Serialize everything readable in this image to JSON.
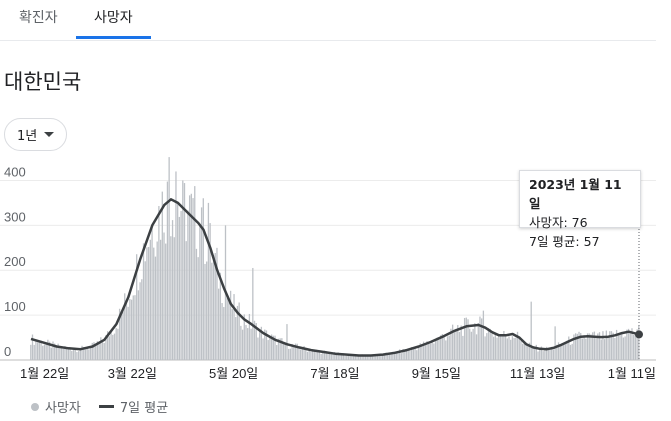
{
  "tabs": [
    {
      "label": "확진자"
    },
    {
      "label": "사망자"
    }
  ],
  "region": "대한민국",
  "period": {
    "selected": "1년"
  },
  "tooltip": {
    "date": "2023년 1월 11일",
    "deaths_line": "사망자: 76",
    "avg_line": "7일 평균: 57"
  },
  "legend": {
    "bars": "사망자",
    "line": "7일 평균"
  },
  "colors": {
    "bar": "#bdc1c6",
    "line": "#3c4043",
    "accent": "#1a73e8"
  },
  "chart_data": {
    "type": "bar",
    "ylim": [
      0,
      450
    ],
    "yticks": [
      0,
      100,
      200,
      300,
      400
    ],
    "xlabels": [
      "1월 22일",
      "3월 22일",
      "5월 20일",
      "7월 18일",
      "9월 15일",
      "11월 13일",
      "1월 11일"
    ],
    "days": 356,
    "series": [
      {
        "name": "7일 평균",
        "kind": "line",
        "points": [
          [
            0,
            47
          ],
          [
            8,
            38
          ],
          [
            15,
            30
          ],
          [
            22,
            26
          ],
          [
            29,
            24
          ],
          [
            36,
            30
          ],
          [
            43,
            45
          ],
          [
            50,
            80
          ],
          [
            57,
            140
          ],
          [
            64,
            225
          ],
          [
            71,
            300
          ],
          [
            78,
            345
          ],
          [
            82,
            358
          ],
          [
            86,
            350
          ],
          [
            90,
            335
          ],
          [
            94,
            320
          ],
          [
            98,
            305
          ],
          [
            101,
            290
          ],
          [
            105,
            250
          ],
          [
            109,
            200
          ],
          [
            113,
            160
          ],
          [
            117,
            125
          ],
          [
            121,
            105
          ],
          [
            125,
            90
          ],
          [
            129,
            80
          ],
          [
            136,
            60
          ],
          [
            143,
            45
          ],
          [
            150,
            35
          ],
          [
            157,
            28
          ],
          [
            164,
            22
          ],
          [
            171,
            18
          ],
          [
            178,
            14
          ],
          [
            185,
            12
          ],
          [
            192,
            10
          ],
          [
            199,
            10
          ],
          [
            206,
            12
          ],
          [
            213,
            16
          ],
          [
            220,
            22
          ],
          [
            227,
            30
          ],
          [
            234,
            40
          ],
          [
            241,
            52
          ],
          [
            248,
            65
          ],
          [
            255,
            75
          ],
          [
            262,
            78
          ],
          [
            266,
            72
          ],
          [
            270,
            62
          ],
          [
            274,
            55
          ],
          [
            278,
            55
          ],
          [
            282,
            58
          ],
          [
            286,
            50
          ],
          [
            290,
            35
          ],
          [
            294,
            28
          ],
          [
            298,
            25
          ],
          [
            302,
            24
          ],
          [
            306,
            27
          ],
          [
            310,
            33
          ],
          [
            314,
            40
          ],
          [
            318,
            47
          ],
          [
            322,
            52
          ],
          [
            326,
            53
          ],
          [
            330,
            52
          ],
          [
            334,
            51
          ],
          [
            338,
            52
          ],
          [
            342,
            55
          ],
          [
            346,
            60
          ],
          [
            350,
            63
          ],
          [
            353,
            60
          ],
          [
            356,
            57
          ]
        ]
      },
      {
        "name": "사망자",
        "kind": "bar",
        "points": [
          [
            0,
            47
          ],
          [
            8,
            38
          ],
          [
            15,
            30
          ],
          [
            22,
            26
          ],
          [
            29,
            24
          ],
          [
            36,
            30
          ],
          [
            43,
            45
          ],
          [
            50,
            80
          ],
          [
            57,
            140
          ],
          [
            64,
            225
          ],
          [
            71,
            300
          ],
          [
            78,
            345
          ],
          [
            82,
            358
          ],
          [
            86,
            350
          ],
          [
            90,
            335
          ],
          [
            94,
            320
          ],
          [
            98,
            305
          ],
          [
            101,
            290
          ],
          [
            105,
            250
          ],
          [
            109,
            200
          ],
          [
            113,
            160
          ],
          [
            117,
            125
          ],
          [
            121,
            105
          ],
          [
            125,
            90
          ],
          [
            129,
            80
          ],
          [
            136,
            60
          ],
          [
            143,
            45
          ],
          [
            150,
            35
          ],
          [
            157,
            28
          ],
          [
            164,
            22
          ],
          [
            171,
            18
          ],
          [
            178,
            14
          ],
          [
            185,
            12
          ],
          [
            192,
            10
          ],
          [
            199,
            10
          ],
          [
            206,
            12
          ],
          [
            213,
            16
          ],
          [
            220,
            22
          ],
          [
            227,
            30
          ],
          [
            234,
            40
          ],
          [
            241,
            52
          ],
          [
            248,
            65
          ],
          [
            255,
            75
          ],
          [
            262,
            78
          ],
          [
            266,
            72
          ],
          [
            270,
            62
          ],
          [
            274,
            55
          ],
          [
            278,
            55
          ],
          [
            282,
            58
          ],
          [
            286,
            50
          ],
          [
            290,
            35
          ],
          [
            294,
            28
          ],
          [
            298,
            25
          ],
          [
            302,
            24
          ],
          [
            306,
            27
          ],
          [
            310,
            33
          ],
          [
            314,
            40
          ],
          [
            318,
            47
          ],
          [
            322,
            52
          ],
          [
            326,
            53
          ],
          [
            330,
            52
          ],
          [
            334,
            51
          ],
          [
            338,
            52
          ],
          [
            342,
            55
          ],
          [
            346,
            60
          ],
          [
            350,
            63
          ],
          [
            353,
            60
          ],
          [
            356,
            76
          ]
        ],
        "spikes": [
          [
            81,
            452
          ],
          [
            85,
            420
          ],
          [
            89,
            400
          ],
          [
            100,
            340
          ],
          [
            104,
            350
          ],
          [
            114,
            300
          ],
          [
            130,
            205
          ],
          [
            150,
            80
          ],
          [
            265,
            110
          ],
          [
            293,
            130
          ],
          [
            307,
            75
          ],
          [
            356,
            76
          ]
        ]
      }
    ]
  }
}
